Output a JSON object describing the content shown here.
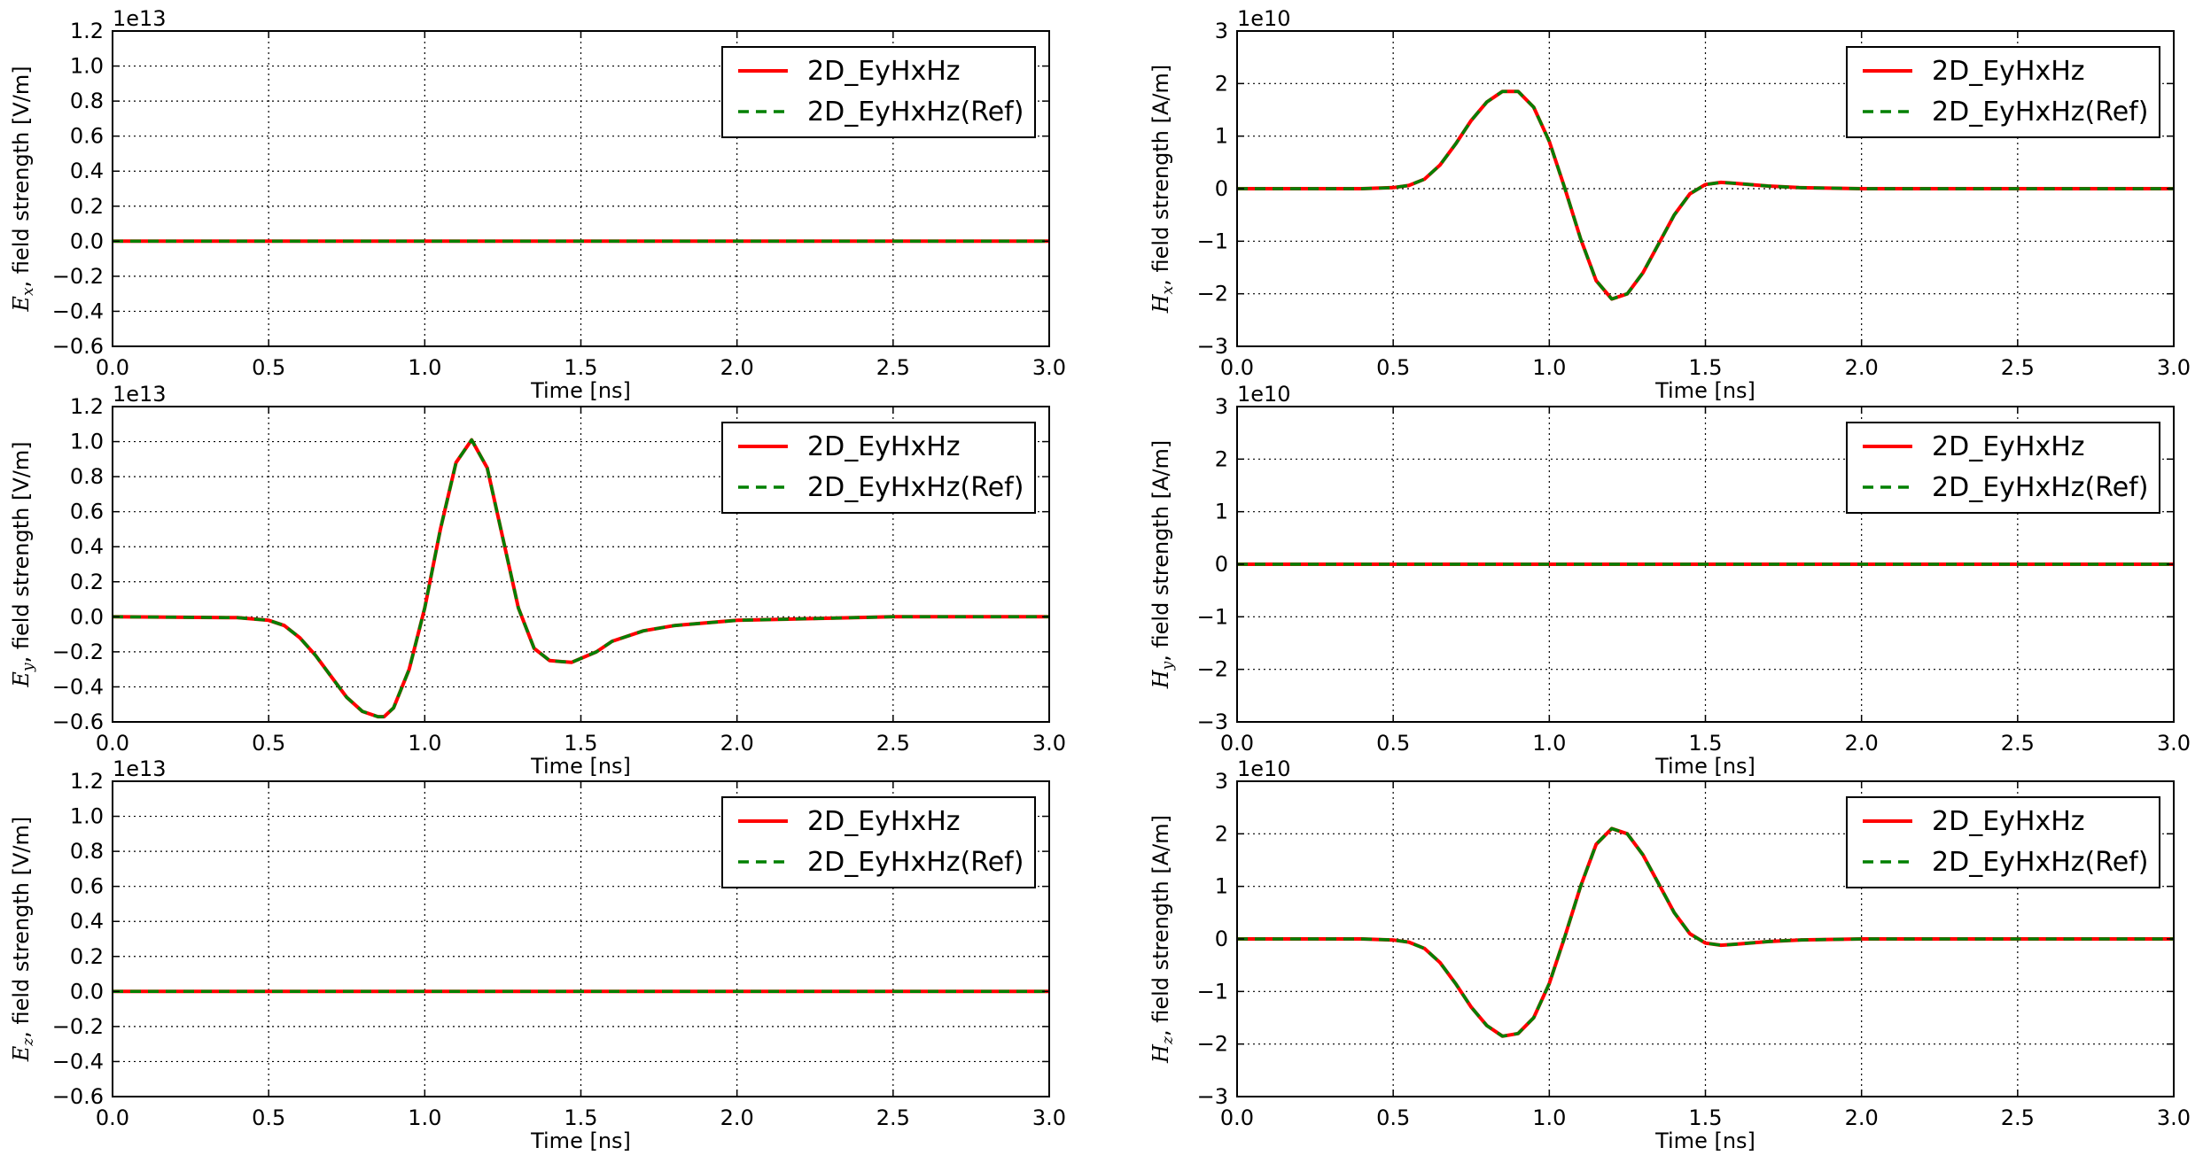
{
  "chart_data": [
    {
      "type": "line",
      "ylabel": {
        "symbol": "E",
        "sub": "x",
        "text": ", field strength [V/m]"
      },
      "xlabel": "Time [ns]",
      "offset_text": "1e13",
      "xlim": [
        0.0,
        3.0
      ],
      "ylim": [
        -0.6,
        1.2
      ],
      "xticks": [
        "0.0",
        "0.5",
        "1.0",
        "1.5",
        "2.0",
        "2.5",
        "3.0"
      ],
      "yticks": [
        "−0.6",
        "−0.4",
        "−0.2",
        "0.0",
        "0.2",
        "0.4",
        "0.6",
        "0.8",
        "1.0",
        "1.2"
      ],
      "grid": true,
      "legend_position": "top-right",
      "series": [
        {
          "name": "2D_EyHxHz",
          "color": "#ff0000",
          "style": "solid",
          "x": [
            0.0,
            3.0
          ],
          "y": [
            0.0,
            0.0
          ]
        },
        {
          "name": "2D_EyHxHz(Ref)",
          "color": "#008000",
          "style": "dashed",
          "x": [
            0.0,
            3.0
          ],
          "y": [
            0.0,
            0.0
          ]
        }
      ]
    },
    {
      "type": "line",
      "ylabel": {
        "symbol": "H",
        "sub": "x",
        "text": ", field strength [A/m]"
      },
      "xlabel": "Time [ns]",
      "offset_text": "1e10",
      "xlim": [
        0.0,
        3.0
      ],
      "ylim": [
        -3,
        3
      ],
      "xticks": [
        "0.0",
        "0.5",
        "1.0",
        "1.5",
        "2.0",
        "2.5",
        "3.0"
      ],
      "yticks": [
        "−3",
        "−2",
        "−1",
        "0",
        "1",
        "2",
        "3"
      ],
      "grid": true,
      "legend_position": "top-right",
      "series": [
        {
          "name": "2D_EyHxHz",
          "color": "#ff0000",
          "style": "solid",
          "x": [
            0.0,
            0.4,
            0.5,
            0.55,
            0.6,
            0.65,
            0.7,
            0.75,
            0.8,
            0.85,
            0.9,
            0.95,
            1.0,
            1.05,
            1.1,
            1.15,
            1.2,
            1.25,
            1.3,
            1.35,
            1.4,
            1.45,
            1.5,
            1.55,
            1.6,
            1.7,
            1.8,
            2.0,
            2.5,
            3.0
          ],
          "y": [
            0.0,
            0.0,
            0.02,
            0.06,
            0.18,
            0.45,
            0.85,
            1.3,
            1.65,
            1.85,
            1.85,
            1.55,
            0.9,
            0.0,
            -0.95,
            -1.75,
            -2.1,
            -2.0,
            -1.6,
            -1.05,
            -0.5,
            -0.1,
            0.08,
            0.12,
            0.1,
            0.05,
            0.02,
            0.0,
            0.0,
            0.0
          ]
        },
        {
          "name": "2D_EyHxHz(Ref)",
          "color": "#008000",
          "style": "dashed",
          "x": [
            0.0,
            0.4,
            0.5,
            0.55,
            0.6,
            0.65,
            0.7,
            0.75,
            0.8,
            0.85,
            0.9,
            0.95,
            1.0,
            1.05,
            1.1,
            1.15,
            1.2,
            1.25,
            1.3,
            1.35,
            1.4,
            1.45,
            1.5,
            1.55,
            1.6,
            1.7,
            1.8,
            2.0,
            2.5,
            3.0
          ],
          "y": [
            0.0,
            0.0,
            0.02,
            0.06,
            0.18,
            0.45,
            0.85,
            1.3,
            1.65,
            1.85,
            1.85,
            1.55,
            0.9,
            0.0,
            -0.95,
            -1.75,
            -2.1,
            -2.0,
            -1.6,
            -1.05,
            -0.5,
            -0.1,
            0.08,
            0.12,
            0.1,
            0.05,
            0.02,
            0.0,
            0.0,
            0.0
          ]
        }
      ]
    },
    {
      "type": "line",
      "ylabel": {
        "symbol": "E",
        "sub": "y",
        "text": ", field strength [V/m]"
      },
      "xlabel": "Time [ns]",
      "offset_text": "1e13",
      "xlim": [
        0.0,
        3.0
      ],
      "ylim": [
        -0.6,
        1.2
      ],
      "xticks": [
        "0.0",
        "0.5",
        "1.0",
        "1.5",
        "2.0",
        "2.5",
        "3.0"
      ],
      "yticks": [
        "−0.6",
        "−0.4",
        "−0.2",
        "0.0",
        "0.2",
        "0.4",
        "0.6",
        "0.8",
        "1.0",
        "1.2"
      ],
      "grid": true,
      "legend_position": "top-right",
      "series": [
        {
          "name": "2D_EyHxHz",
          "color": "#ff0000",
          "style": "solid",
          "x": [
            0.0,
            0.4,
            0.5,
            0.55,
            0.6,
            0.65,
            0.7,
            0.75,
            0.8,
            0.85,
            0.87,
            0.9,
            0.95,
            1.0,
            1.05,
            1.1,
            1.15,
            1.2,
            1.25,
            1.3,
            1.35,
            1.4,
            1.47,
            1.55,
            1.6,
            1.7,
            1.8,
            2.0,
            2.5,
            3.0
          ],
          "y": [
            0.0,
            -0.005,
            -0.02,
            -0.05,
            -0.12,
            -0.22,
            -0.34,
            -0.46,
            -0.54,
            -0.57,
            -0.57,
            -0.52,
            -0.3,
            0.05,
            0.5,
            0.88,
            1.01,
            0.85,
            0.45,
            0.05,
            -0.18,
            -0.25,
            -0.26,
            -0.2,
            -0.14,
            -0.08,
            -0.05,
            -0.02,
            0.0,
            0.0
          ]
        },
        {
          "name": "2D_EyHxHz(Ref)",
          "color": "#008000",
          "style": "dashed",
          "x": [
            0.0,
            0.4,
            0.5,
            0.55,
            0.6,
            0.65,
            0.7,
            0.75,
            0.8,
            0.85,
            0.87,
            0.9,
            0.95,
            1.0,
            1.05,
            1.1,
            1.15,
            1.2,
            1.25,
            1.3,
            1.35,
            1.4,
            1.47,
            1.55,
            1.6,
            1.7,
            1.8,
            2.0,
            2.5,
            3.0
          ],
          "y": [
            0.0,
            -0.005,
            -0.02,
            -0.05,
            -0.12,
            -0.22,
            -0.34,
            -0.46,
            -0.54,
            -0.57,
            -0.57,
            -0.52,
            -0.3,
            0.05,
            0.5,
            0.88,
            1.01,
            0.85,
            0.45,
            0.05,
            -0.18,
            -0.25,
            -0.26,
            -0.2,
            -0.14,
            -0.08,
            -0.05,
            -0.02,
            0.0,
            0.0
          ]
        }
      ]
    },
    {
      "type": "line",
      "ylabel": {
        "symbol": "H",
        "sub": "y",
        "text": ", field strength [A/m]"
      },
      "xlabel": "Time [ns]",
      "offset_text": "1e10",
      "xlim": [
        0.0,
        3.0
      ],
      "ylim": [
        -3,
        3
      ],
      "xticks": [
        "0.0",
        "0.5",
        "1.0",
        "1.5",
        "2.0",
        "2.5",
        "3.0"
      ],
      "yticks": [
        "−3",
        "−2",
        "−1",
        "0",
        "1",
        "2",
        "3"
      ],
      "grid": true,
      "legend_position": "top-right",
      "series": [
        {
          "name": "2D_EyHxHz",
          "color": "#ff0000",
          "style": "solid",
          "x": [
            0.0,
            3.0
          ],
          "y": [
            0.0,
            0.0
          ]
        },
        {
          "name": "2D_EyHxHz(Ref)",
          "color": "#008000",
          "style": "dashed",
          "x": [
            0.0,
            3.0
          ],
          "y": [
            0.0,
            0.0
          ]
        }
      ]
    },
    {
      "type": "line",
      "ylabel": {
        "symbol": "E",
        "sub": "z",
        "text": ", field strength [V/m]"
      },
      "xlabel": "Time [ns]",
      "offset_text": "1e13",
      "xlim": [
        0.0,
        3.0
      ],
      "ylim": [
        -0.6,
        1.2
      ],
      "xticks": [
        "0.0",
        "0.5",
        "1.0",
        "1.5",
        "2.0",
        "2.5",
        "3.0"
      ],
      "yticks": [
        "−0.6",
        "−0.4",
        "−0.2",
        "0.0",
        "0.2",
        "0.4",
        "0.6",
        "0.8",
        "1.0",
        "1.2"
      ],
      "grid": true,
      "legend_position": "top-right",
      "series": [
        {
          "name": "2D_EyHxHz",
          "color": "#ff0000",
          "style": "solid",
          "x": [
            0.0,
            3.0
          ],
          "y": [
            0.0,
            0.0
          ]
        },
        {
          "name": "2D_EyHxHz(Ref)",
          "color": "#008000",
          "style": "dashed",
          "x": [
            0.0,
            3.0
          ],
          "y": [
            0.0,
            0.0
          ]
        }
      ]
    },
    {
      "type": "line",
      "ylabel": {
        "symbol": "H",
        "sub": "z",
        "text": ", field strength [A/m]"
      },
      "xlabel": "Time [ns]",
      "offset_text": "1e10",
      "xlim": [
        0.0,
        3.0
      ],
      "ylim": [
        -3,
        3
      ],
      "xticks": [
        "0.0",
        "0.5",
        "1.0",
        "1.5",
        "2.0",
        "2.5",
        "3.0"
      ],
      "yticks": [
        "−3",
        "−2",
        "−1",
        "0",
        "1",
        "2",
        "3"
      ],
      "grid": true,
      "legend_position": "top-right",
      "series": [
        {
          "name": "2D_EyHxHz",
          "color": "#ff0000",
          "style": "solid",
          "x": [
            0.0,
            0.4,
            0.5,
            0.55,
            0.6,
            0.65,
            0.7,
            0.75,
            0.8,
            0.85,
            0.9,
            0.95,
            1.0,
            1.05,
            1.1,
            1.15,
            1.2,
            1.25,
            1.3,
            1.35,
            1.4,
            1.45,
            1.5,
            1.55,
            1.6,
            1.7,
            1.8,
            2.0,
            2.5,
            3.0
          ],
          "y": [
            0.0,
            0.0,
            -0.02,
            -0.06,
            -0.18,
            -0.45,
            -0.85,
            -1.3,
            -1.65,
            -1.85,
            -1.8,
            -1.5,
            -0.85,
            0.05,
            1.0,
            1.8,
            2.1,
            2.0,
            1.6,
            1.05,
            0.5,
            0.1,
            -0.08,
            -0.12,
            -0.1,
            -0.05,
            -0.02,
            0.0,
            0.0,
            0.0
          ]
        },
        {
          "name": "2D_EyHxHz(Ref)",
          "color": "#008000",
          "style": "dashed",
          "x": [
            0.0,
            0.4,
            0.5,
            0.55,
            0.6,
            0.65,
            0.7,
            0.75,
            0.8,
            0.85,
            0.9,
            0.95,
            1.0,
            1.05,
            1.1,
            1.15,
            1.2,
            1.25,
            1.3,
            1.35,
            1.4,
            1.45,
            1.5,
            1.55,
            1.6,
            1.7,
            1.8,
            2.0,
            2.5,
            3.0
          ],
          "y": [
            0.0,
            0.0,
            -0.02,
            -0.06,
            -0.18,
            -0.45,
            -0.85,
            -1.3,
            -1.65,
            -1.85,
            -1.8,
            -1.5,
            -0.85,
            0.05,
            1.0,
            1.8,
            2.1,
            2.0,
            1.6,
            1.05,
            0.5,
            0.1,
            -0.08,
            -0.12,
            -0.1,
            -0.05,
            -0.02,
            0.0,
            0.0,
            0.0
          ]
        }
      ]
    }
  ]
}
